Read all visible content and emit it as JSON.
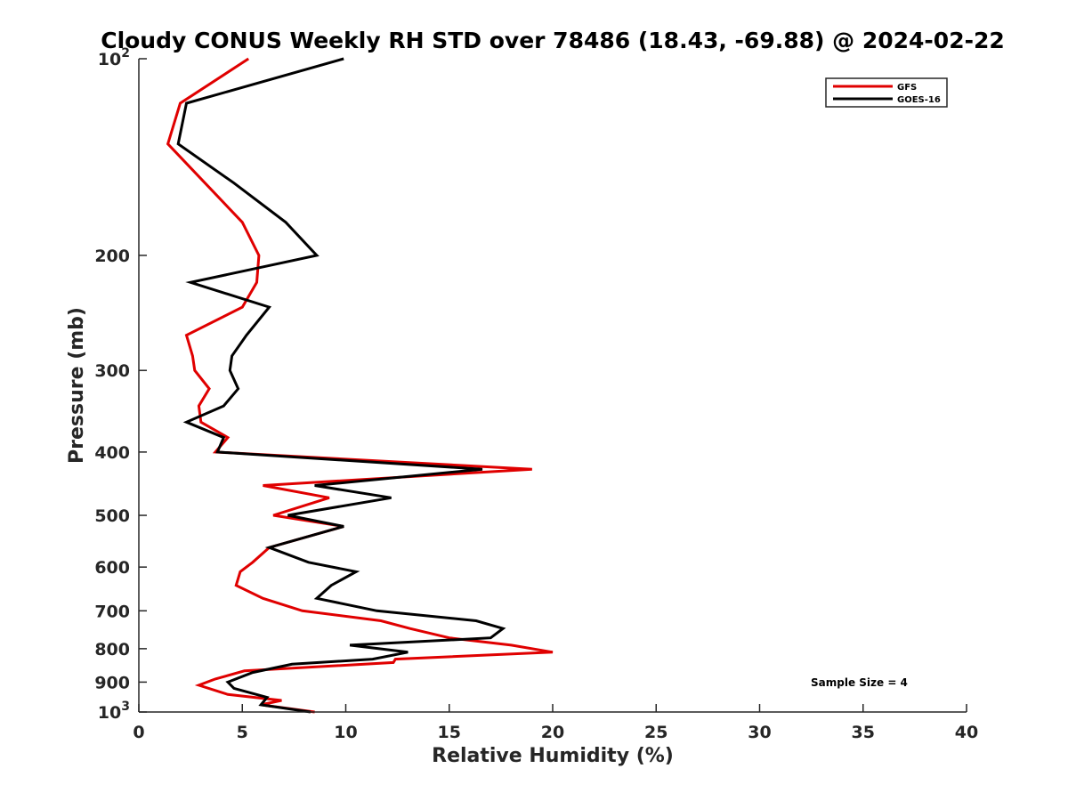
{
  "chart_data": {
    "type": "line",
    "title": "Cloudy CONUS Weekly RH STD over 78486 (18.43, -69.88) @ 2024-02-22",
    "xlabel": "Relative Humidity (%)",
    "ylabel": "Pressure (mb)",
    "xlim": [
      0,
      40
    ],
    "ylim": [
      100,
      1000
    ],
    "y_scale": "log",
    "y_reversed": true,
    "x_ticks": [
      "0",
      "5",
      "10",
      "15",
      "20",
      "25",
      "30",
      "35",
      "40"
    ],
    "y_ticks": [
      {
        "value": 100,
        "base": "10",
        "exp": "2"
      },
      {
        "value": 200,
        "label": "200"
      },
      {
        "value": 300,
        "label": "300"
      },
      {
        "value": 400,
        "label": "400"
      },
      {
        "value": 500,
        "label": "500"
      },
      {
        "value": 600,
        "label": "600"
      },
      {
        "value": 700,
        "label": "700"
      },
      {
        "value": 800,
        "label": "800"
      },
      {
        "value": 900,
        "label": "900"
      },
      {
        "value": 1000,
        "base": "10",
        "exp": "3"
      }
    ],
    "legend_position": "top-right",
    "grid": false,
    "annotation": "Sample Size = 4",
    "series": [
      {
        "name": "GFS",
        "color": "#e00000",
        "points": [
          [
            5.3,
            100
          ],
          [
            2.0,
            117
          ],
          [
            1.4,
            135
          ],
          [
            3.2,
            155
          ],
          [
            5.0,
            178
          ],
          [
            5.8,
            200
          ],
          [
            5.7,
            220
          ],
          [
            5.0,
            240
          ],
          [
            2.3,
            265
          ],
          [
            2.6,
            285
          ],
          [
            2.7,
            300
          ],
          [
            3.4,
            320
          ],
          [
            2.9,
            340
          ],
          [
            3.0,
            360
          ],
          [
            4.3,
            380
          ],
          [
            3.7,
            400
          ],
          [
            19.0,
            425
          ],
          [
            6.0,
            450
          ],
          [
            9.2,
            470
          ],
          [
            6.5,
            500
          ],
          [
            9.9,
            520
          ],
          [
            6.3,
            560
          ],
          [
            5.5,
            590
          ],
          [
            4.9,
            610
          ],
          [
            4.7,
            640
          ],
          [
            6.0,
            670
          ],
          [
            7.9,
            700
          ],
          [
            11.7,
            725
          ],
          [
            13.1,
            745
          ],
          [
            15.0,
            770
          ],
          [
            18.0,
            790
          ],
          [
            20.0,
            810
          ],
          [
            12.4,
            830
          ],
          [
            12.3,
            840
          ],
          [
            5.1,
            865
          ],
          [
            3.7,
            890
          ],
          [
            2.9,
            910
          ],
          [
            4.3,
            940
          ],
          [
            6.9,
            960
          ],
          [
            5.9,
            975
          ],
          [
            8.5,
            1000
          ]
        ]
      },
      {
        "name": "GOES-16",
        "color": "#000000",
        "points": [
          [
            9.9,
            100
          ],
          [
            2.3,
            117
          ],
          [
            1.9,
            135
          ],
          [
            4.6,
            155
          ],
          [
            7.1,
            178
          ],
          [
            8.6,
            200
          ],
          [
            2.5,
            220
          ],
          [
            6.3,
            240
          ],
          [
            5.2,
            265
          ],
          [
            4.5,
            285
          ],
          [
            4.4,
            300
          ],
          [
            4.8,
            320
          ],
          [
            4.1,
            340
          ],
          [
            2.3,
            360
          ],
          [
            4.1,
            380
          ],
          [
            3.8,
            400
          ],
          [
            16.6,
            425
          ],
          [
            8.5,
            450
          ],
          [
            12.2,
            470
          ],
          [
            7.2,
            500
          ],
          [
            9.9,
            520
          ],
          [
            6.3,
            560
          ],
          [
            8.2,
            590
          ],
          [
            10.5,
            610
          ],
          [
            9.3,
            640
          ],
          [
            8.6,
            670
          ],
          [
            11.5,
            700
          ],
          [
            16.3,
            725
          ],
          [
            17.6,
            745
          ],
          [
            17.0,
            770
          ],
          [
            10.2,
            790
          ],
          [
            13.0,
            810
          ],
          [
            11.3,
            830
          ],
          [
            7.4,
            845
          ],
          [
            5.5,
            870
          ],
          [
            4.3,
            900
          ],
          [
            4.6,
            920
          ],
          [
            6.2,
            950
          ],
          [
            5.9,
            975
          ],
          [
            8.3,
            1000
          ]
        ]
      }
    ]
  }
}
